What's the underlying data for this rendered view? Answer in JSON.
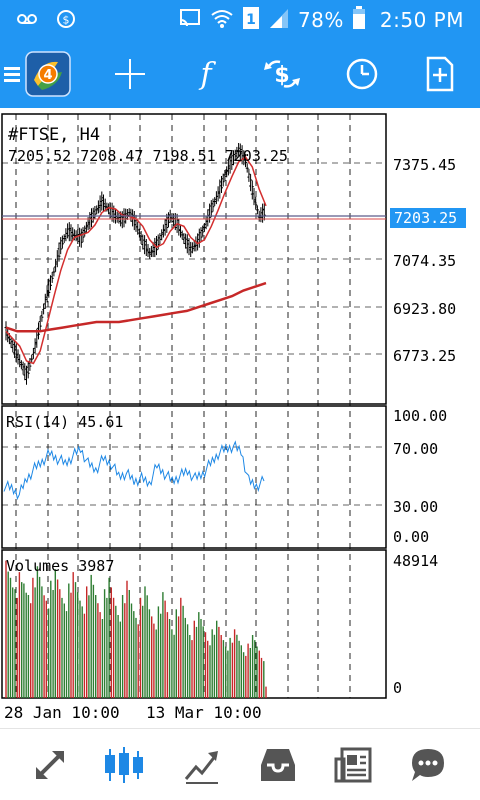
{
  "status_bar": {
    "battery_percent": "78%",
    "time": "2:50 PM",
    "icons": [
      "voicemail-icon",
      "dollar-circle-icon",
      "cast-icon",
      "wifi-icon",
      "sim-1-icon",
      "signal-icon",
      "battery-icon"
    ]
  },
  "toolbar": {
    "icons": [
      "menu-icon",
      "metatrader-logo",
      "crosshair-icon",
      "indicators-icon",
      "symbols-icon",
      "timeframe-clock-icon",
      "new-object-icon"
    ],
    "logo_badge": "4"
  },
  "chart": {
    "symbol_label": "#FTSE, H4",
    "ohlc_label": "7205.52 7208.47 7198.51 7203.25",
    "current_price": "7203.25",
    "price_ticks": [
      "7375.45",
      "7074.35",
      "6923.80",
      "6773.25"
    ],
    "date_labels": [
      "28 Jan 10:00",
      "13 Mar 10:00"
    ],
    "colors": {
      "bars": "#000000",
      "ma_fast": "#d32f2f",
      "ma_slow": "#c62828",
      "rsi_line": "#1e88e5",
      "vol_up": "#2e7d32",
      "vol_down": "#c62828",
      "price_tag": "#2196f3",
      "bid_line": "#5c5c8a"
    }
  },
  "rsi": {
    "label": "RSI(14) 45.61",
    "ticks": [
      "100.00",
      "70.00",
      "30.00",
      "0.00"
    ]
  },
  "volumes": {
    "label": "Volumes 3987",
    "ticks": [
      "48914",
      "0"
    ]
  },
  "chart_data": [
    {
      "type": "line",
      "title": "#FTSE, H4",
      "xlabel": "",
      "ylabel": "",
      "x_labels": [
        "28 Jan 10:00",
        "13 Mar 10:00"
      ],
      "series": [
        {
          "values": [
            6880,
            6840,
            6800,
            6760,
            6820,
            6900,
            6980,
            7040,
            7110,
            7150,
            7140,
            7130,
            7170,
            7200,
            7230,
            7210,
            7190,
            7180,
            7200,
            7170,
            7120,
            7090,
            7110,
            7150,
            7190,
            7170,
            7130,
            7100,
            7120,
            7160,
            7210,
            7250,
            7300,
            7340,
            7370,
            7340,
            7260,
            7190,
            7205
          ]
        },
        {
          "values": [
            6890,
            6880,
            6880,
            6880,
            6885,
            6890,
            6895,
            6900,
            6905,
            6905,
            6905,
            6910,
            6915,
            6920,
            6925,
            6930,
            6935,
            6945,
            6955,
            6965,
            6975,
            6990,
            7000,
            7010
          ]
        }
      ],
      "ylim": [
        6700,
        7450
      ]
    },
    {
      "type": "line",
      "title": "RSI(14) 45.61",
      "series": [
        {
          "values": [
            42,
            40,
            35,
            48,
            56,
            62,
            68,
            64,
            60,
            66,
            72,
            60,
            55,
            64,
            60,
            50,
            52,
            46,
            48,
            44,
            58,
            52,
            46,
            50,
            54,
            48,
            52,
            60,
            68,
            72,
            74,
            70,
            46,
            42,
            46
          ]
        }
      ],
      "ylim": [
        0,
        100
      ]
    },
    {
      "type": "bar",
      "title": "Volumes 3987",
      "values": [
        48000,
        42000,
        38000,
        44000,
        40000,
        36000,
        42000,
        46000,
        39000,
        34000,
        41000,
        45000,
        38000,
        33000,
        40000,
        44000,
        37000,
        32000,
        39000,
        43000,
        36000,
        30000,
        38000,
        42000,
        35000,
        29000,
        36000,
        41000,
        33000,
        28000,
        35000,
        39000,
        31000,
        26000,
        32000,
        37000,
        30000,
        24000,
        31000,
        35000,
        28000,
        22000,
        27000,
        30000,
        25000,
        20000,
        24000,
        27000,
        22000,
        18000,
        21000,
        24000,
        20000,
        16000,
        19000,
        22000,
        18000,
        14000,
        3987
      ],
      "ylim": [
        0,
        48914
      ]
    }
  ],
  "bottom_nav": {
    "icons": [
      "quotes-icon",
      "chart-icon",
      "trade-icon",
      "history-icon",
      "news-icon",
      "chat-icon"
    ]
  }
}
